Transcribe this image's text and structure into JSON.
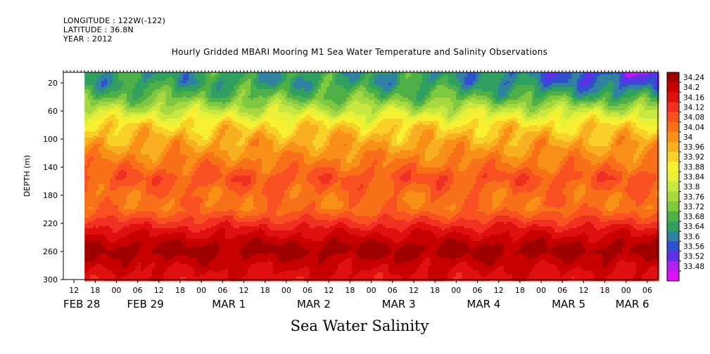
{
  "header": {
    "longitude": "LONGITUDE : 122W(-122)",
    "latitude": "LATITUDE : 36.8N",
    "year": "YEAR : 2012"
  },
  "chart_data": {
    "type": "heatmap",
    "title": "Hourly Gridded MBARI Mooring M1 Sea Water Temperature and Salinity Observations",
    "bottom_label": "Sea Water Salinity",
    "ylabel": "DEPTH (m)",
    "y_ticks": [
      20,
      60,
      100,
      140,
      180,
      220,
      260,
      300
    ],
    "ylim": [
      300,
      5
    ],
    "x_hour_ticks": [
      "12",
      "18",
      "00",
      "06",
      "12",
      "18",
      "00",
      "06",
      "12",
      "18",
      "00",
      "06",
      "12",
      "18",
      "00",
      "06",
      "12",
      "18",
      "00",
      "06",
      "12",
      "18",
      "00",
      "06",
      "12",
      "18",
      "00",
      "06"
    ],
    "x_date_labels": [
      "FEB 28",
      "FEB 29",
      "MAR  1",
      "MAR  2",
      "MAR  3",
      "MAR  4",
      "MAR  5",
      "MAR  6"
    ],
    "data_start": "FEB 28 18:00",
    "colorbar_levels": [
      "34.24",
      "34.2",
      "34.16",
      "34.12",
      "34.08",
      "34.04",
      "34",
      "33.96",
      "33.92",
      "33.88",
      "33.84",
      "33.8",
      "33.76",
      "33.72",
      "33.68",
      "33.64",
      "33.6",
      "33.56",
      "33.52",
      "33.48"
    ],
    "colorbar_colors": [
      "#a00000",
      "#c80000",
      "#e01010",
      "#f03020",
      "#f85020",
      "#f87018",
      "#f89018",
      "#f8b020",
      "#f8d028",
      "#f8f030",
      "#e8f038",
      "#c8e840",
      "#a8d840",
      "#80c840",
      "#50b048",
      "#30a060",
      "#3080a0",
      "#3050d0",
      "#6030e8",
      "#b020f0",
      "#e010f8"
    ],
    "depth_profile": [
      {
        "depth": 5,
        "value": 33.66
      },
      {
        "depth": 20,
        "value": 33.66
      },
      {
        "depth": 40,
        "value": 33.72
      },
      {
        "depth": 60,
        "value": 33.82
      },
      {
        "depth": 80,
        "value": 33.93
      },
      {
        "depth": 100,
        "value": 33.98
      },
      {
        "depth": 120,
        "value": 34.02
      },
      {
        "depth": 140,
        "value": 34.06
      },
      {
        "depth": 155,
        "value": 34.1
      },
      {
        "depth": 180,
        "value": 34.06
      },
      {
        "depth": 200,
        "value": 34.06
      },
      {
        "depth": 215,
        "value": 34.12
      },
      {
        "depth": 230,
        "value": 34.18
      },
      {
        "depth": 250,
        "value": 34.24
      },
      {
        "depth": 260,
        "value": 34.26
      },
      {
        "depth": 275,
        "value": 34.22
      },
      {
        "depth": 300,
        "value": 34.18
      }
    ],
    "grid": false,
    "legend": "right colorbar"
  }
}
